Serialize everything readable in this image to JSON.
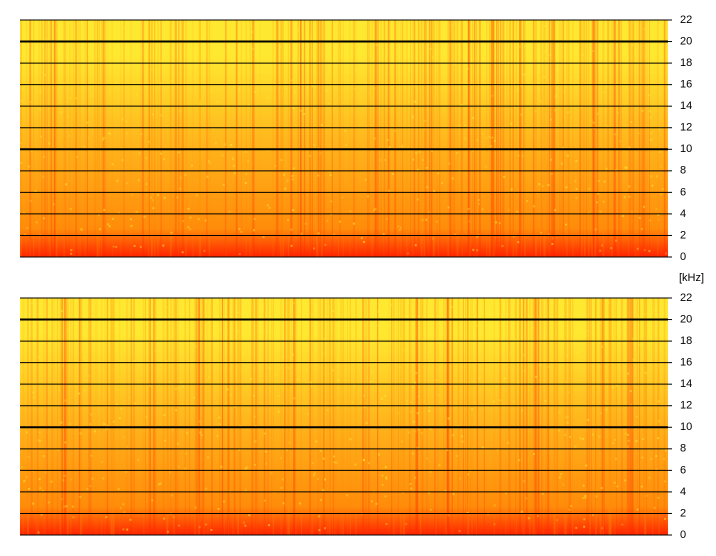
{
  "chart_data": [
    {
      "type": "spectrogram",
      "ylabel": "[kHz]",
      "ylim": [
        0,
        22
      ],
      "yticks": [
        0,
        2,
        4,
        6,
        8,
        10,
        12,
        14,
        16,
        18,
        20,
        22
      ],
      "grid": true,
      "major_gridlines": [
        10,
        20
      ],
      "colormap": [
        "#ff2400",
        "#ff8c0a",
        "#ffb21a",
        "#ffe830"
      ]
    },
    {
      "type": "spectrogram",
      "ylim": [
        0,
        22
      ],
      "yticks": [
        0,
        2,
        4,
        6,
        8,
        10,
        12,
        14,
        16,
        18,
        20,
        22
      ],
      "grid": true,
      "major_gridlines": [
        10,
        20
      ],
      "colormap": [
        "#ff2400",
        "#ff8c0a",
        "#ffb21a",
        "#ffe830"
      ]
    }
  ]
}
